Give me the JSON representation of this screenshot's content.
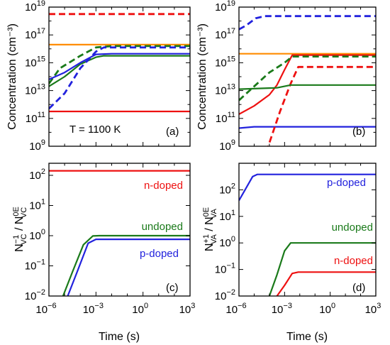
{
  "chart_data": [
    {
      "id": "a",
      "type": "line",
      "panel_label": "(a)",
      "ylabel": "Concentration (cm⁻³)",
      "xlabel": "",
      "xscale": "log",
      "yscale": "log",
      "xlim_exp": [
        -6,
        3
      ],
      "ylim_exp": [
        9,
        19
      ],
      "yticks": [
        "10^9",
        "10^11",
        "10^13",
        "10^15",
        "10^17",
        "10^19"
      ],
      "xticks": [],
      "annotations": [
        {
          "text": "T = 1100 K"
        }
      ],
      "series": [
        {
          "color": "#ee1111",
          "dash": true,
          "points": [
            [
              -6,
              18.5
            ],
            [
              3,
              18.5
            ]
          ]
        },
        {
          "color": "#ee1111",
          "dash": false,
          "points": [
            [
              -6,
              11.5
            ],
            [
              3,
              11.5
            ]
          ]
        },
        {
          "color": "#ff8c00",
          "dash": false,
          "points": [
            [
              -6,
              16.3
            ],
            [
              3,
              16.3
            ]
          ]
        },
        {
          "color": "#1a7a1a",
          "dash": true,
          "points": [
            [
              -6,
              13.5
            ],
            [
              -5.3,
              14.6
            ],
            [
              -4,
              15.5
            ],
            [
              -3,
              16.1
            ],
            [
              -2,
              16.2
            ],
            [
              3,
              16.2
            ]
          ]
        },
        {
          "color": "#1a7a1a",
          "dash": false,
          "points": [
            [
              -6,
              13.3
            ],
            [
              -5,
              14.0
            ],
            [
              -4,
              14.9
            ],
            [
              -3,
              15.4
            ],
            [
              -2.5,
              15.5
            ],
            [
              3,
              15.5
            ]
          ]
        },
        {
          "color": "#2222dd",
          "dash": false,
          "points": [
            [
              -6,
              13.8
            ],
            [
              -5,
              14.3
            ],
            [
              -4,
              15.0
            ],
            [
              -3,
              15.6
            ],
            [
              -2,
              15.65
            ],
            [
              3,
              15.65
            ]
          ]
        },
        {
          "color": "#2222dd",
          "dash": true,
          "points": [
            [
              -6,
              11.7
            ],
            [
              -5,
              12.8
            ],
            [
              -4,
              14.6
            ],
            [
              -3,
              15.8
            ],
            [
              -2.5,
              16.1
            ],
            [
              3,
              16.1
            ]
          ]
        }
      ]
    },
    {
      "id": "b",
      "type": "line",
      "panel_label": "(b)",
      "ylabel": "",
      "xlabel": "",
      "xscale": "log",
      "yscale": "log",
      "xlim_exp": [
        -6,
        3
      ],
      "ylim_exp": [
        9,
        19
      ],
      "yticks": [
        "10^9",
        "10^11",
        "10^13",
        "10^15",
        "10^17",
        "10^19"
      ],
      "xticks": [],
      "annotations": [],
      "series": [
        {
          "color": "#2222dd",
          "dash": true,
          "points": [
            [
              -6,
              17.4
            ],
            [
              -5.5,
              17.7
            ],
            [
              -4.9,
              18.2
            ],
            [
              -4.3,
              18.35
            ],
            [
              3,
              18.35
            ]
          ]
        },
        {
          "color": "#2222dd",
          "dash": false,
          "points": [
            [
              -6,
              10.3
            ],
            [
              -5,
              10.4
            ],
            [
              3,
              10.4
            ]
          ]
        },
        {
          "color": "#ff8c00",
          "dash": false,
          "points": [
            [
              -6,
              15.65
            ],
            [
              3,
              15.65
            ]
          ]
        },
        {
          "color": "#ee1111",
          "dash": false,
          "points": [
            [
              -6,
              11.3
            ],
            [
              -5,
              11.9
            ],
            [
              -4,
              12.7
            ],
            [
              -3.5,
              13.4
            ],
            [
              -3,
              14.5
            ],
            [
              -2.5,
              15.55
            ],
            [
              3,
              15.55
            ]
          ]
        },
        {
          "color": "#ee1111",
          "dash": true,
          "points": [
            [
              -4.2,
              8.6
            ],
            [
              -3.3,
              11.5
            ],
            [
              -2.6,
              13.5
            ],
            [
              -2.1,
              14.7
            ],
            [
              3,
              14.7
            ]
          ]
        },
        {
          "color": "#1a7a1a",
          "dash": true,
          "points": [
            [
              -6,
              12.3
            ],
            [
              -5,
              13.3
            ],
            [
              -4,
              14.3
            ],
            [
              -3,
              15.0
            ],
            [
              -2.5,
              15.45
            ],
            [
              3,
              15.45
            ]
          ]
        },
        {
          "color": "#1a7a1a",
          "dash": false,
          "points": [
            [
              -6,
              13.1
            ],
            [
              -3.5,
              13.2
            ],
            [
              -2.6,
              13.4
            ],
            [
              3,
              13.4
            ]
          ]
        }
      ]
    },
    {
      "id": "c",
      "type": "line",
      "panel_label": "(c)",
      "ylabel": "N⁻¹VC / N⁰ᴱVC",
      "xlabel": "Time (s)",
      "xscale": "log",
      "yscale": "log",
      "xlim_exp": [
        -6,
        3
      ],
      "ylim_exp": [
        -2,
        2.4
      ],
      "yticks": [
        "10^-2",
        "10^-1",
        "10^0",
        "10^1",
        "10^2"
      ],
      "xticks": [
        "10^-6",
        "10^-3",
        "10^0",
        "10^3"
      ],
      "annotations": [
        {
          "text": "n-doped"
        },
        {
          "text": "undoped"
        },
        {
          "text": "p-doped"
        }
      ],
      "series": [
        {
          "color": "#ee1111",
          "dash": false,
          "points": [
            [
              -6,
              2.15
            ],
            [
              3,
              2.15
            ]
          ]
        },
        {
          "color": "#1a7a1a",
          "dash": false,
          "points": [
            [
              -5.1,
              -2.0
            ],
            [
              -4.5,
              -1.2
            ],
            [
              -3.8,
              -0.3
            ],
            [
              -3.2,
              -0.01
            ],
            [
              -2.8,
              0.0
            ],
            [
              3,
              0.0
            ]
          ]
        },
        {
          "color": "#2222dd",
          "dash": false,
          "points": [
            [
              -4.8,
              -2.0
            ],
            [
              -4.2,
              -1.2
            ],
            [
              -3.5,
              -0.25
            ],
            [
              -3.0,
              -0.12
            ],
            [
              3,
              -0.12
            ]
          ]
        }
      ]
    },
    {
      "id": "d",
      "type": "line",
      "panel_label": "(d)",
      "ylabel": "N⁺¹VA / N⁰ᴱVA",
      "xlabel": "Time (s)",
      "xscale": "log",
      "yscale": "log",
      "xlim_exp": [
        -6,
        3
      ],
      "ylim_exp": [
        -2,
        3
      ],
      "yticks": [
        "10^-2",
        "10^-1",
        "10^0",
        "10^1",
        "10^2"
      ],
      "xticks": [
        "10^-6",
        "10^-3",
        "10^0",
        "10^3"
      ],
      "annotations": [
        {
          "text": "p-doped"
        },
        {
          "text": "undoped"
        },
        {
          "text": "n-doped"
        }
      ],
      "series": [
        {
          "color": "#2222dd",
          "dash": false,
          "points": [
            [
              -6,
              1.6
            ],
            [
              -5.6,
              2.0
            ],
            [
              -5.1,
              2.5
            ],
            [
              -4.8,
              2.58
            ],
            [
              3,
              2.58
            ]
          ]
        },
        {
          "color": "#1a7a1a",
          "dash": false,
          "points": [
            [
              -4.0,
              -2.0
            ],
            [
              -3.5,
              -1.2
            ],
            [
              -3.0,
              -0.3
            ],
            [
              -2.6,
              0.0
            ],
            [
              3,
              0.0
            ]
          ]
        },
        {
          "color": "#ee1111",
          "dash": false,
          "points": [
            [
              -3.5,
              -2.0
            ],
            [
              -3.0,
              -1.6
            ],
            [
              -2.5,
              -1.15
            ],
            [
              -2.1,
              -1.1
            ],
            [
              3,
              -1.1
            ]
          ]
        }
      ]
    }
  ]
}
